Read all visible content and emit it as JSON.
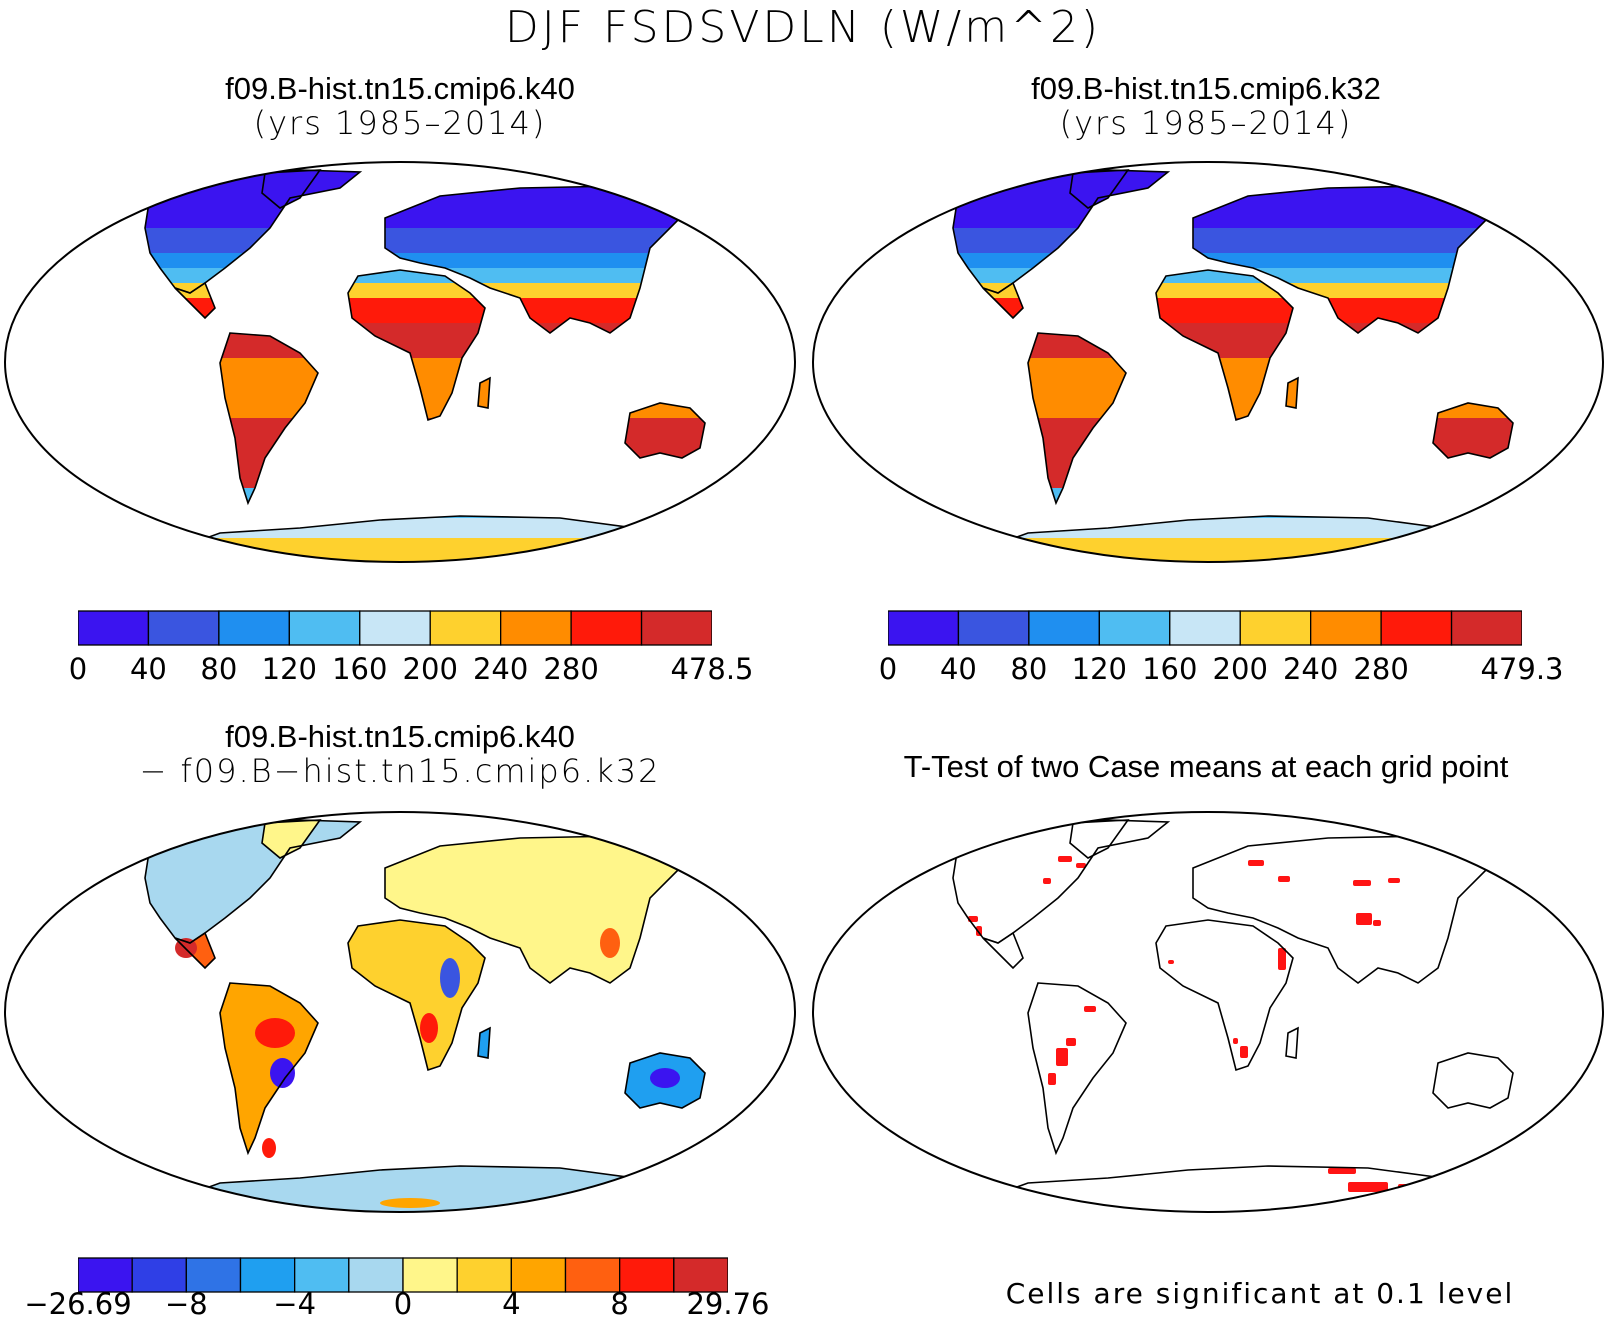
{
  "title": "DJF FSDSVDLN (W/m^2)",
  "panels": [
    {
      "id": "case1",
      "title_line1": "f09.B-hist.tn15.cmip6.k40",
      "title_line2": "(yrs 1985–2014)",
      "field": "mean",
      "colorbar": {
        "labels": [
          "0",
          "40",
          "80",
          "120",
          "160",
          "200",
          "240",
          "280",
          "478.5"
        ],
        "colors": [
          "#3b14f0",
          "#3a55e0",
          "#1f8ff0",
          "#4fbdf2",
          "#c8e6f6",
          "#fed12e",
          "#ff8c00",
          "#ff1a0a",
          "#d42a2a"
        ]
      }
    },
    {
      "id": "case2",
      "title_line1": "f09.B-hist.tn15.cmip6.k32",
      "title_line2": "(yrs 1985–2014)",
      "field": "mean",
      "colorbar": {
        "labels": [
          "0",
          "40",
          "80",
          "120",
          "160",
          "200",
          "240",
          "280",
          "479.3"
        ],
        "colors": [
          "#3b14f0",
          "#3a55e0",
          "#1f8ff0",
          "#4fbdf2",
          "#c8e6f6",
          "#fed12e",
          "#ff8c00",
          "#ff1a0a",
          "#d42a2a"
        ]
      }
    },
    {
      "id": "diff",
      "title_line1": "f09.B-hist.tn15.cmip6.k40",
      "title_line2": "− f09.B−hist.tn15.cmip6.k32",
      "field": "difference",
      "colorbar": {
        "labels": [
          "−26.69",
          "−8",
          "−4",
          "0",
          "4",
          "8",
          "29.76"
        ],
        "colors": [
          "#3b14f0",
          "#2f3fe6",
          "#2f73e6",
          "#1f9ff0",
          "#4fbdf2",
          "#a8d8ef",
          "#fff68a",
          "#fed12e",
          "#ffa500",
          "#ff6010",
          "#ff1a0a",
          "#d42a2a"
        ]
      }
    },
    {
      "id": "ttest",
      "title_line1": "T-Test of two Case means at each grid point",
      "field": "significance",
      "note": "Cells are significant at 0.1 level",
      "sig_color": "#ff1414"
    }
  ]
}
